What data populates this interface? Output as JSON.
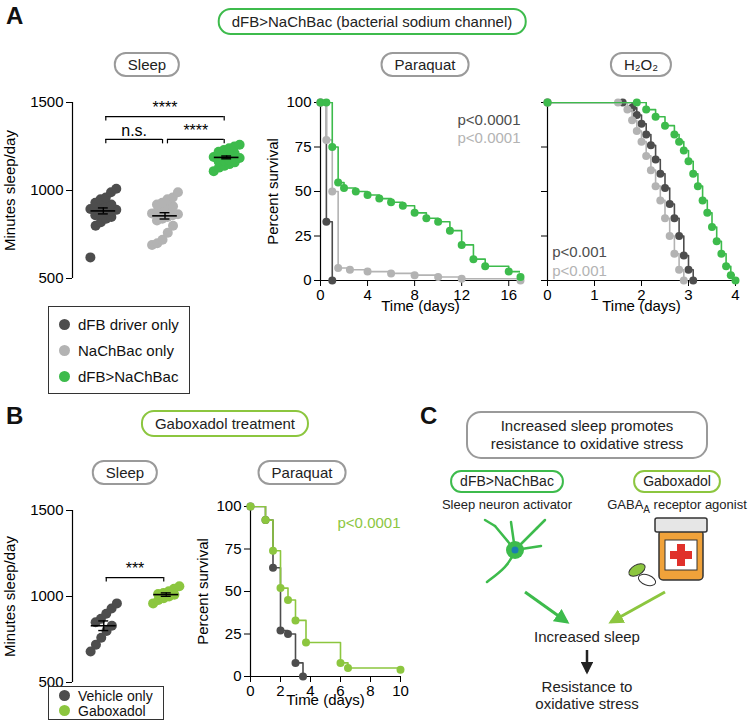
{
  "chart_data": [
    {
      "type": "strip",
      "title": "Sleep",
      "ylabel": "Minutes sleep/day",
      "ylim": [
        500,
        1500
      ],
      "yticks": [
        500,
        1000,
        1500
      ],
      "tick_labels": "y",
      "legend": "bottom",
      "series": [
        {
          "name": "dFB driver only",
          "color": "#4d4d4d",
          "marker": "circle",
          "values": [
            620,
            800,
            820,
            840,
            850,
            860,
            870,
            880,
            885,
            890,
            895,
            900,
            905,
            910,
            920,
            930,
            950,
            960,
            990,
            1010
          ],
          "mean": 884,
          "error": 17
        },
        {
          "name": "NaChBac only",
          "color": "#b3b3b3",
          "marker": "circle",
          "values": [
            690,
            700,
            720,
            760,
            800,
            830,
            840,
            850,
            860,
            865,
            870,
            880,
            890,
            900,
            910,
            920,
            930,
            950,
            960,
            990
          ],
          "mean": 856,
          "error": 18
        },
        {
          "name": "dFB>NaChBac",
          "color": "#3dbb4c",
          "marker": "circle",
          "values": [
            1110,
            1130,
            1140,
            1150,
            1160,
            1165,
            1170,
            1175,
            1180,
            1185,
            1190,
            1195,
            1200,
            1205,
            1210,
            1220,
            1230,
            1240,
            1250,
            1260
          ],
          "mean": 1188,
          "error": 8
        }
      ],
      "annotations": [
        {
          "text": "****",
          "from": "dFB driver only",
          "to": "dFB>NaChBac",
          "y": 1420
        },
        {
          "text": "n.s.",
          "from": "dFB driver only",
          "to": "NaChBac only",
          "y": 1290
        },
        {
          "text": "****",
          "from": "NaChBac only",
          "to": "dFB>NaChBac",
          "y": 1290
        }
      ]
    },
    {
      "type": "step",
      "title": "Paraquat",
      "xlabel": "Time (days)",
      "ylabel": "Percent survival",
      "xlim": [
        0,
        17
      ],
      "xticks": [
        0,
        4,
        8,
        12,
        16
      ],
      "ylim": [
        0,
        100
      ],
      "yticks": [
        0,
        25,
        50,
        75,
        100
      ],
      "series": [
        {
          "name": "dFB driver only",
          "color": "#4d4d4d",
          "marker": "circle",
          "x": [
            0,
            0.5,
            1
          ],
          "values": [
            100,
            33,
            0
          ]
        },
        {
          "name": "NaChBac only",
          "color": "#b3b3b3",
          "marker": "circle",
          "x": [
            0,
            0.5,
            1,
            1.5,
            2.5,
            4,
            6,
            8,
            10,
            12,
            17
          ],
          "values": [
            100,
            79,
            50,
            7,
            6,
            5,
            4,
            3,
            2,
            1,
            0
          ]
        },
        {
          "name": "dFB>NaChBac",
          "color": "#3dbb4c",
          "marker": "circle",
          "x": [
            0,
            0.5,
            1,
            1.5,
            2,
            3,
            4,
            5,
            6,
            7,
            8,
            9,
            10,
            11,
            12,
            13,
            14,
            16,
            17
          ],
          "values": [
            100,
            100,
            75,
            55,
            52,
            50,
            48,
            46,
            44,
            42,
            38,
            35,
            33,
            28,
            20,
            12,
            8,
            5,
            2
          ]
        }
      ],
      "annotations": [
        {
          "text": "p<0.0001",
          "color": "#4d4d4d",
          "x": 17,
          "y": 90
        },
        {
          "text": "p<0.0001",
          "color": "#b3b3b3",
          "x": 17,
          "y": 80
        }
      ]
    },
    {
      "type": "step",
      "title": "H₂O₂",
      "xlabel": "Time (days)",
      "xlim": [
        0,
        4
      ],
      "xticks": [
        0,
        1,
        2,
        3,
        4
      ],
      "ylim": [
        0,
        100
      ],
      "yticks": [
        0,
        25,
        50,
        75,
        100
      ],
      "tick_labels": "x",
      "series": [
        {
          "name": "dFB driver only",
          "color": "#4d4d4d",
          "marker": "circle",
          "x": [
            0,
            1.6,
            1.8,
            1.9,
            2.0,
            2.1,
            2.2,
            2.3,
            2.4,
            2.5,
            2.6,
            2.7,
            2.8,
            2.9,
            3.0,
            3.1
          ],
          "values": [
            100,
            100,
            97,
            93,
            88,
            82,
            76,
            68,
            60,
            52,
            43,
            35,
            25,
            14,
            6,
            0
          ]
        },
        {
          "name": "NaChBac only",
          "color": "#b3b3b3",
          "marker": "circle",
          "x": [
            0,
            1.5,
            1.7,
            1.8,
            1.9,
            2.0,
            2.1,
            2.2,
            2.3,
            2.4,
            2.5,
            2.6,
            2.7,
            2.8,
            2.9
          ],
          "values": [
            100,
            100,
            96,
            90,
            84,
            78,
            70,
            62,
            53,
            45,
            35,
            25,
            15,
            6,
            0
          ]
        },
        {
          "name": "dFB>NaChBac",
          "color": "#3dbb4c",
          "marker": "circle",
          "x": [
            0,
            1.9,
            2.1,
            2.3,
            2.5,
            2.7,
            2.8,
            2.9,
            3.0,
            3.1,
            3.2,
            3.3,
            3.4,
            3.5,
            3.6,
            3.7,
            3.8,
            3.9,
            4.0
          ],
          "values": [
            100,
            100,
            96,
            92,
            87,
            82,
            78,
            73,
            67,
            60,
            53,
            45,
            38,
            30,
            22,
            15,
            8,
            3,
            0
          ]
        }
      ],
      "annotations": [
        {
          "text": "p<0.001",
          "color": "#4d4d4d",
          "x": 0.1,
          "y": 16
        },
        {
          "text": "p<0.001",
          "color": "#b3b3b3",
          "x": 0.1,
          "y": 5
        }
      ]
    },
    {
      "type": "strip",
      "title": "Sleep",
      "ylabel": "Minutes sleep/day",
      "ylim": [
        500,
        1500
      ],
      "yticks": [
        500,
        1000,
        1500
      ],
      "tick_labels": "y",
      "legend": "bottom",
      "series": [
        {
          "name": "Vehicle only",
          "color": "#4d4d4d",
          "marker": "circle",
          "values": [
            680,
            720,
            760,
            800,
            830,
            850,
            870,
            900,
            930,
            960
          ],
          "mean": 830,
          "error": 28
        },
        {
          "name": "Gaboxadol",
          "color": "#8cc63f",
          "marker": "circle",
          "values": [
            960,
            980,
            990,
            1000,
            1010,
            1015,
            1020,
            1030,
            1045,
            1060
          ],
          "mean": 1011,
          "error": 10
        }
      ],
      "annotations": [
        {
          "text": "***",
          "from": "Vehicle only",
          "to": "Gaboxadol",
          "y": 1110
        }
      ]
    },
    {
      "type": "step",
      "title": "Paraquat",
      "xlabel": "Time (days)",
      "ylabel": "Percent survival",
      "xlim": [
        0,
        10
      ],
      "xticks": [
        0,
        2,
        4,
        6,
        8,
        10
      ],
      "ylim": [
        0,
        100
      ],
      "yticks": [
        0,
        25,
        50,
        75,
        100
      ],
      "series": [
        {
          "name": "Vehicle only",
          "color": "#4d4d4d",
          "marker": "circle",
          "x": [
            0,
            1,
            1.5,
            2,
            2.5,
            3,
            3.5
          ],
          "values": [
            100,
            92,
            64,
            27,
            25,
            8,
            0
          ]
        },
        {
          "name": "Gaboxadol",
          "color": "#8cc63f",
          "marker": "circle",
          "x": [
            0,
            1,
            1.5,
            2,
            2.5,
            3,
            3.7,
            6,
            6.5,
            10
          ],
          "values": [
            100,
            92,
            74,
            52,
            45,
            33,
            20,
            8,
            5,
            4
          ]
        }
      ],
      "annotations": [
        {
          "text": "p<0.0001",
          "color": "#8cc63f",
          "x": 10,
          "y": 90
        }
      ]
    }
  ],
  "panels": [
    {
      "label": "A",
      "header": "dFB>NaChBac (bacterial sodium channel)",
      "color": "#3dbb4c"
    },
    {
      "label": "B",
      "header": "Gaboxadol treatment",
      "color": "#8cc63f"
    },
    {
      "label": "C",
      "header": [
        "Increased sleep promotes",
        "resistance to oxidative stress"
      ],
      "nodes": [
        {
          "title": "dFB>NaChBac",
          "subtitle": [
            {
              "text": "Sleep neuron activator"
            }
          ],
          "color": "#3dbb4c"
        },
        {
          "title": "Gaboxadol",
          "subtitle": [
            {
              "text": "GABA"
            },
            {
              "text": "A",
              "sub": true
            },
            {
              "text": " receptor agonist"
            }
          ],
          "color": "#8cc63f"
        },
        {
          "label": [
            "Increased sleep"
          ]
        },
        {
          "label": [
            "Resistance to",
            "oxidative stress"
          ]
        }
      ]
    }
  ]
}
